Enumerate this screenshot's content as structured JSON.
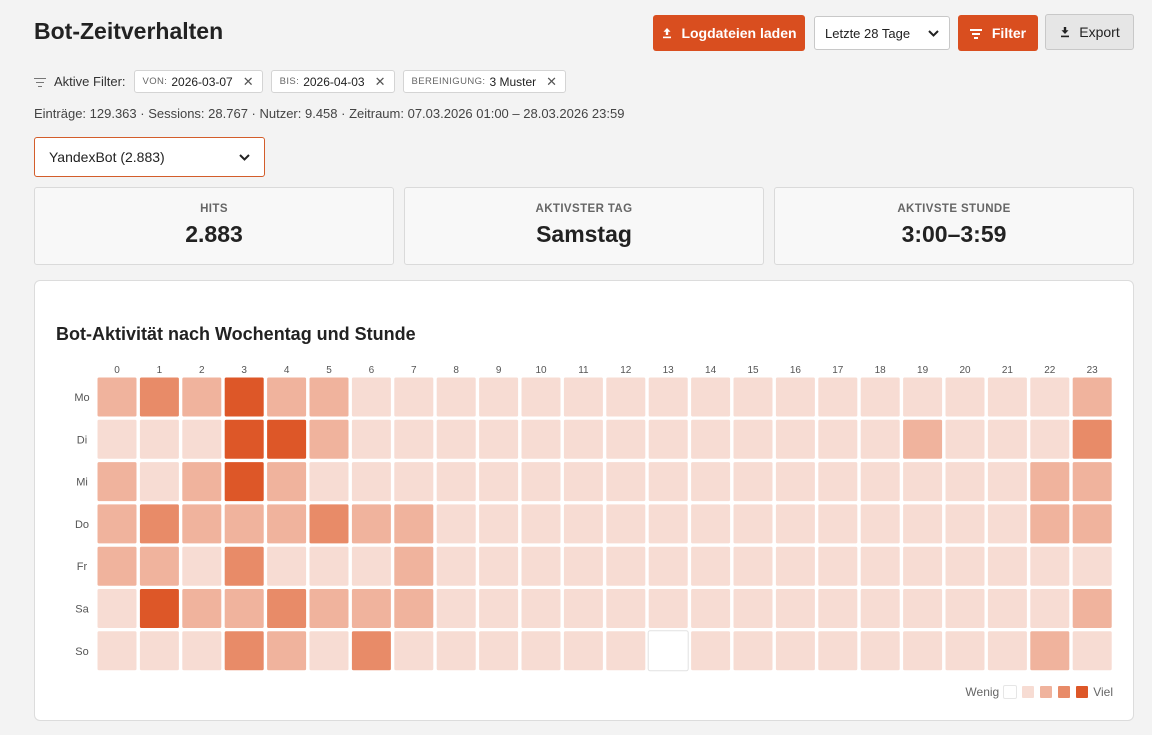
{
  "page": {
    "title": "Bot-Zeitverhalten"
  },
  "toolbar": {
    "load_label": "Logdateien laden",
    "period_value": "Letzte 28 Tage",
    "filter_label": "Filter",
    "export_label": "Export"
  },
  "filters": {
    "label": "Aktive Filter:",
    "chips": [
      {
        "key": "VON:",
        "value": "2026-03-07"
      },
      {
        "key": "BIS:",
        "value": "2026-04-03"
      },
      {
        "key": "BEREINIGUNG:",
        "value": "3 Muster"
      }
    ]
  },
  "summary": "Einträge: 129.363 · Sessions: 28.767 · Nutzer: 9.458 · Zeitraum: 07.03.2026 01:00 – 28.03.2026 23:59",
  "bot_select": {
    "value": "YandexBot (2.883)"
  },
  "kpis": [
    {
      "label": "HITS",
      "value": "2.883"
    },
    {
      "label": "AKTIVSTER TAG",
      "value": "Samstag"
    },
    {
      "label": "AKTIVSTE STUNDE",
      "value": "3:00–3:59"
    }
  ],
  "colors": {
    "accent": "#d94e1f",
    "scale": [
      "#ffffff",
      "#f7dcd3",
      "#f0b39d",
      "#e88b68",
      "#dd5728"
    ]
  },
  "chart_data": {
    "type": "heatmap",
    "title": "Bot-Aktivität nach Wochentag und Stunde",
    "x": [
      "0",
      "1",
      "2",
      "3",
      "4",
      "5",
      "6",
      "7",
      "8",
      "9",
      "10",
      "11",
      "12",
      "13",
      "14",
      "15",
      "16",
      "17",
      "18",
      "19",
      "20",
      "21",
      "22",
      "23"
    ],
    "y": [
      "Mo",
      "Di",
      "Mi",
      "Do",
      "Fr",
      "Sa",
      "So"
    ],
    "value_meaning": "intensity level 0 (none) to 4 (Viel)",
    "values": [
      [
        2,
        3,
        2,
        4,
        2,
        2,
        1,
        1,
        1,
        1,
        1,
        1,
        1,
        1,
        1,
        1,
        1,
        1,
        1,
        1,
        1,
        1,
        1,
        2
      ],
      [
        1,
        1,
        1,
        4,
        4,
        2,
        1,
        1,
        1,
        1,
        1,
        1,
        1,
        1,
        1,
        1,
        1,
        1,
        1,
        2,
        1,
        1,
        1,
        3
      ],
      [
        2,
        1,
        2,
        4,
        2,
        1,
        1,
        1,
        1,
        1,
        1,
        1,
        1,
        1,
        1,
        1,
        1,
        1,
        1,
        1,
        1,
        1,
        2,
        2
      ],
      [
        2,
        3,
        2,
        2,
        2,
        3,
        2,
        2,
        1,
        1,
        1,
        1,
        1,
        1,
        1,
        1,
        1,
        1,
        1,
        1,
        1,
        1,
        2,
        2
      ],
      [
        2,
        2,
        1,
        3,
        1,
        1,
        1,
        2,
        1,
        1,
        1,
        1,
        1,
        1,
        1,
        1,
        1,
        1,
        1,
        1,
        1,
        1,
        1,
        1
      ],
      [
        1,
        4,
        2,
        2,
        3,
        2,
        2,
        2,
        1,
        1,
        1,
        1,
        1,
        1,
        1,
        1,
        1,
        1,
        1,
        1,
        1,
        1,
        1,
        2
      ],
      [
        1,
        1,
        1,
        3,
        2,
        1,
        3,
        1,
        1,
        1,
        1,
        1,
        1,
        0,
        1,
        1,
        1,
        1,
        1,
        1,
        1,
        1,
        2,
        1
      ]
    ],
    "legend": {
      "low": "Wenig",
      "high": "Viel"
    }
  }
}
